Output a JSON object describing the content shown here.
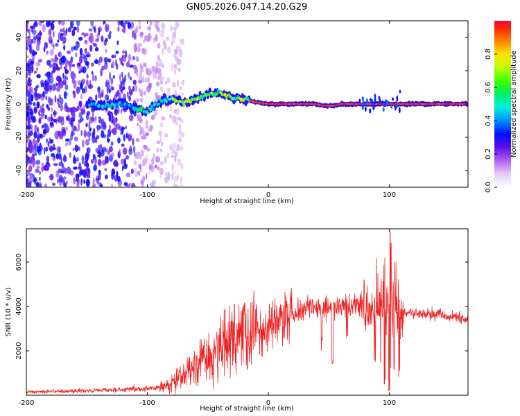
{
  "title": "GN05.2026.047.14.20.G29",
  "chart_data": [
    {
      "type": "heatmap",
      "title": "GN05.2026.047.14.20.G29",
      "xlabel": "Height of straight line (km)",
      "ylabel": "Frequency (Hz)",
      "xlim": [
        -200,
        165
      ],
      "ylim": [
        -50,
        50
      ],
      "xticks": [
        -200,
        -100,
        0,
        100
      ],
      "yticks": [
        -40,
        -20,
        0,
        20,
        40
      ],
      "colorbar": {
        "label": "Normalized spectral amplitude",
        "range": [
          0,
          1
        ],
        "ticks": [
          "0.0",
          "0.2",
          "0.4",
          "0.6",
          "0.8"
        ]
      },
      "ridge_centre_hz": [
        [
          -200,
          0
        ],
        [
          -150,
          0
        ],
        [
          -140,
          -1
        ],
        [
          -120,
          0
        ],
        [
          -110,
          -3
        ],
        [
          -100,
          -4
        ],
        [
          -90,
          1
        ],
        [
          -80,
          3
        ],
        [
          -70,
          1
        ],
        [
          -60,
          3
        ],
        [
          -50,
          6
        ],
        [
          -40,
          7
        ],
        [
          -30,
          4
        ],
        [
          -20,
          3
        ],
        [
          -10,
          1
        ],
        [
          0,
          0
        ],
        [
          20,
          0
        ],
        [
          40,
          0
        ],
        [
          45,
          -1
        ],
        [
          55,
          -1
        ],
        [
          60,
          0
        ],
        [
          80,
          0
        ],
        [
          90,
          0
        ],
        [
          100,
          0
        ],
        [
          165,
          0
        ]
      ],
      "noise_band_km": [
        -200,
        -80
      ]
    },
    {
      "type": "line",
      "xlabel": "Height of straight line (km)",
      "ylabel": "SNR (10 * v/v)",
      "xlim": [
        -200,
        165
      ],
      "ylim": [
        0,
        7500
      ],
      "xticks": [
        -200,
        -100,
        0,
        100
      ],
      "yticks": [
        2000,
        4000,
        6000
      ],
      "series": [
        {
          "name": "SNR",
          "color": "#ee2222",
          "envelope": [
            [
              -200,
              150
            ],
            [
              -150,
              200
            ],
            [
              -120,
              250
            ],
            [
              -100,
              300
            ],
            [
              -90,
              350
            ],
            [
              -80,
              500
            ],
            [
              -70,
              900
            ],
            [
              -60,
              1300
            ],
            [
              -50,
              1700
            ],
            [
              -40,
              2000
            ],
            [
              -30,
              2400
            ],
            [
              -20,
              2600
            ],
            [
              -10,
              2800
            ],
            [
              0,
              3000
            ],
            [
              10,
              3300
            ],
            [
              20,
              3600
            ],
            [
              30,
              3850
            ],
            [
              40,
              4000
            ],
            [
              50,
              3950
            ],
            [
              60,
              4050
            ],
            [
              70,
              4000
            ],
            [
              80,
              3950
            ],
            [
              90,
              3900
            ],
            [
              100,
              3800
            ],
            [
              110,
              3750
            ],
            [
              120,
              3700
            ],
            [
              130,
              3650
            ],
            [
              140,
              3650
            ],
            [
              150,
              3550
            ],
            [
              165,
              3450
            ]
          ],
          "spikes": [
            [
              -20,
              4200
            ],
            [
              -10,
              4300
            ],
            [
              5,
              4000
            ],
            [
              25,
              4500
            ],
            [
              35,
              4400
            ],
            [
              53,
              4900
            ],
            [
              88,
              7100
            ],
            [
              96,
              6800
            ],
            [
              101,
              7500
            ],
            [
              105,
              6600
            ],
            [
              108,
              6000
            ]
          ],
          "dips": [
            [
              44,
              2400
            ],
            [
              53,
              1600
            ],
            [
              65,
              2600
            ],
            [
              80,
              2800
            ],
            [
              88,
              1500
            ],
            [
              96,
              600
            ],
            [
              100,
              200
            ],
            [
              104,
              1200
            ],
            [
              108,
              1000
            ]
          ]
        }
      ]
    }
  ]
}
